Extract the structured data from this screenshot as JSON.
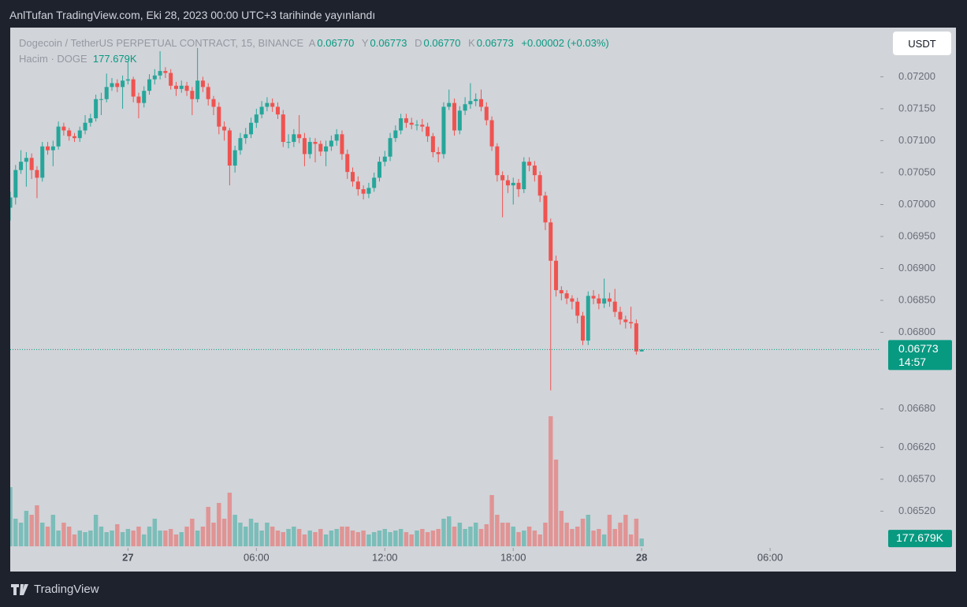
{
  "page": {
    "top_bar": "AnlTufan TradingView.com, Eki 28, 2023 00:00 UTC+3 tarihinde yayınlandı",
    "footer": "TradingView",
    "currency_button": "USDT"
  },
  "chart_data": {
    "type": "candlestick",
    "title": "Dogecoin / TetherUS PERPETUAL CONTRACT, 15, BINANCE",
    "ohlc_legend": [
      {
        "key": "A",
        "label": "0.06770"
      },
      {
        "key": "Y",
        "label": "0.06773"
      },
      {
        "key": "D",
        "label": "0.06770"
      },
      {
        "key": "K",
        "label": "0.06773"
      }
    ],
    "change_label": "+0.00002 (+0.03%)",
    "up_color": "#26a69a",
    "down_color": "#ef5350",
    "grid": false,
    "xlim": [
      0,
      162.6
    ],
    "xticks": [
      {
        "value": 22,
        "label": "27"
      },
      {
        "value": 46,
        "label": "06:00"
      },
      {
        "value": 70,
        "label": "12:00"
      },
      {
        "value": 94,
        "label": "18:00"
      },
      {
        "value": 118,
        "label": "28"
      },
      {
        "value": 142,
        "label": "06:00"
      }
    ],
    "ylim": [
      0.06465,
      0.07277
    ],
    "yticks": [
      {
        "value": 0.072,
        "label": "0.07200"
      },
      {
        "value": 0.0715,
        "label": "0.07150"
      },
      {
        "value": 0.071,
        "label": "0.07100"
      },
      {
        "value": 0.0705,
        "label": "0.07050"
      },
      {
        "value": 0.07,
        "label": "0.07000"
      },
      {
        "value": 0.0695,
        "label": "0.06950"
      },
      {
        "value": 0.069,
        "label": "0.06900"
      },
      {
        "value": 0.0685,
        "label": "0.06850"
      },
      {
        "value": 0.068,
        "label": "0.06800"
      },
      {
        "value": 0.0668,
        "label": "0.06680"
      },
      {
        "value": 0.0662,
        "label": "0.06620"
      },
      {
        "value": 0.0657,
        "label": "0.06570"
      },
      {
        "value": 0.0652,
        "label": "0.06520"
      }
    ],
    "last_price": {
      "label": "0.06773",
      "countdown": "14:57"
    },
    "open": [
      0.06995,
      0.07011,
      0.07054,
      0.07067,
      0.07073,
      0.07054,
      0.07042,
      0.07091,
      0.07085,
      0.07091,
      0.07122,
      0.07116,
      0.07107,
      0.07104,
      0.07116,
      0.07128,
      0.07135,
      0.07165,
      0.07165,
      0.07184,
      0.0719,
      0.07184,
      0.07194,
      0.07196,
      0.07169,
      0.07159,
      0.07178,
      0.07196,
      0.07202,
      0.07209,
      0.07206,
      0.07186,
      0.07181,
      0.07186,
      0.07178,
      0.07165,
      0.07194,
      0.07184,
      0.07165,
      0.07153,
      0.07122,
      0.07116,
      0.07061,
      0.07085,
      0.07104,
      0.0711,
      0.07128,
      0.07141,
      0.07153,
      0.07159,
      0.07153,
      0.07141,
      0.07098,
      0.07098,
      0.0711,
      0.07104,
      0.07079,
      0.07098,
      0.07095,
      0.07083,
      0.07091,
      0.071,
      0.0711,
      0.07079,
      0.07051,
      0.07036,
      0.07024,
      0.07017,
      0.07026,
      0.07042,
      0.07067,
      0.07075,
      0.07104,
      0.07116,
      0.07135,
      0.07128,
      0.07125,
      0.07125,
      0.07122,
      0.07107,
      0.07082,
      0.07079,
      0.07153,
      0.07159,
      0.07116,
      0.07147,
      0.07157,
      0.07162,
      0.07165,
      0.07153,
      0.07132,
      0.07091,
      0.07046,
      0.07038,
      0.0703,
      0.07034,
      0.07024,
      0.07067,
      0.07061,
      0.07046,
      0.07014,
      0.06972,
      0.06912,
      0.06866,
      0.06861,
      0.06853,
      0.06848,
      0.06826,
      0.06787,
      0.06857,
      0.06853,
      0.06845,
      0.06853,
      0.06848,
      0.06832,
      0.0682,
      0.06816,
      0.06814,
      0.0677
    ],
    "high": [
      0.0702,
      0.07062,
      0.07085,
      0.07082,
      0.0708,
      0.0706,
      0.07098,
      0.07098,
      0.071,
      0.0713,
      0.07128,
      0.0712,
      0.07112,
      0.07122,
      0.0714,
      0.07142,
      0.07172,
      0.07175,
      0.07205,
      0.07198,
      0.07196,
      0.07202,
      0.07225,
      0.072,
      0.07175,
      0.07185,
      0.07204,
      0.07212,
      0.0724,
      0.07215,
      0.07212,
      0.07192,
      0.07194,
      0.07192,
      0.07184,
      0.07245,
      0.072,
      0.0719,
      0.0717,
      0.0716,
      0.0713,
      0.0712,
      0.07092,
      0.07112,
      0.0712,
      0.07136,
      0.0715,
      0.07162,
      0.07168,
      0.07166,
      0.0716,
      0.07148,
      0.0711,
      0.07118,
      0.0714,
      0.07112,
      0.07105,
      0.07104,
      0.071,
      0.071,
      0.07108,
      0.07118,
      0.07116,
      0.07086,
      0.07058,
      0.07044,
      0.0703,
      0.07034,
      0.0705,
      0.07075,
      0.07084,
      0.07112,
      0.07124,
      0.07142,
      0.07142,
      0.07136,
      0.07132,
      0.07134,
      0.07128,
      0.07112,
      0.0709,
      0.0716,
      0.0718,
      0.07166,
      0.07154,
      0.07168,
      0.0719,
      0.07174,
      0.0718,
      0.0716,
      0.07138,
      0.07096,
      0.07052,
      0.07046,
      0.07042,
      0.0704,
      0.07074,
      0.07074,
      0.07068,
      0.07052,
      0.0702,
      0.06978,
      0.0692,
      0.06872,
      0.06866,
      0.06858,
      0.06854,
      0.06832,
      0.06864,
      0.06866,
      0.0686,
      0.06884,
      0.06862,
      0.06868,
      0.0684,
      0.06826,
      0.0684,
      0.0682,
      0.06773
    ],
    "low": [
      0.06975,
      0.07,
      0.07048,
      0.07028,
      0.0704,
      0.0701,
      0.07036,
      0.07078,
      0.0706,
      0.07086,
      0.07108,
      0.071,
      0.07098,
      0.07098,
      0.0711,
      0.07122,
      0.0713,
      0.0714,
      0.0716,
      0.07178,
      0.07176,
      0.0715,
      0.07188,
      0.0716,
      0.07135,
      0.07152,
      0.07172,
      0.07188,
      0.07196,
      0.07198,
      0.0718,
      0.0717,
      0.07175,
      0.0717,
      0.0714,
      0.0716,
      0.07176,
      0.07155,
      0.0714,
      0.0711,
      0.071,
      0.0703,
      0.0705,
      0.07078,
      0.07095,
      0.07104,
      0.0712,
      0.07135,
      0.07146,
      0.07145,
      0.07134,
      0.0709,
      0.07088,
      0.0709,
      0.07096,
      0.0706,
      0.07072,
      0.07066,
      0.07076,
      0.0706,
      0.07084,
      0.07092,
      0.0707,
      0.0704,
      0.07028,
      0.07014,
      0.07008,
      0.0701,
      0.0702,
      0.07036,
      0.0706,
      0.07068,
      0.07098,
      0.0711,
      0.0712,
      0.07118,
      0.07116,
      0.07114,
      0.07098,
      0.07074,
      0.07066,
      0.07072,
      0.07148,
      0.07108,
      0.0711,
      0.0714,
      0.0715,
      0.07154,
      0.07146,
      0.07124,
      0.07084,
      0.07036,
      0.0698,
      0.07018,
      0.07,
      0.07012,
      0.07018,
      0.07052,
      0.07036,
      0.07004,
      0.0696,
      0.06709,
      0.06856,
      0.0685,
      0.06844,
      0.06836,
      0.06814,
      0.0678,
      0.0678,
      0.06844,
      0.06836,
      0.06838,
      0.0684,
      0.06824,
      0.06812,
      0.06806,
      0.06806,
      0.06765,
      0.0677
    ],
    "close": [
      0.07011,
      0.07054,
      0.07067,
      0.07073,
      0.07054,
      0.07042,
      0.07091,
      0.07085,
      0.07091,
      0.07122,
      0.07116,
      0.07107,
      0.07104,
      0.07116,
      0.07128,
      0.07135,
      0.07165,
      0.07165,
      0.07184,
      0.0719,
      0.07184,
      0.07194,
      0.07196,
      0.07169,
      0.07159,
      0.07178,
      0.07196,
      0.07202,
      0.07209,
      0.07206,
      0.07186,
      0.07181,
      0.07186,
      0.07178,
      0.07165,
      0.07194,
      0.07184,
      0.07165,
      0.07153,
      0.07122,
      0.07116,
      0.07061,
      0.07085,
      0.07104,
      0.0711,
      0.07128,
      0.07141,
      0.07153,
      0.07159,
      0.07153,
      0.07141,
      0.07098,
      0.07098,
      0.0711,
      0.07104,
      0.07079,
      0.07098,
      0.07095,
      0.07083,
      0.07091,
      0.071,
      0.0711,
      0.07079,
      0.07051,
      0.07036,
      0.07024,
      0.07017,
      0.07026,
      0.07042,
      0.07067,
      0.07075,
      0.07104,
      0.07116,
      0.07135,
      0.07128,
      0.07125,
      0.07125,
      0.07122,
      0.07107,
      0.07082,
      0.07079,
      0.07153,
      0.07159,
      0.07116,
      0.07147,
      0.07157,
      0.07162,
      0.07165,
      0.07153,
      0.07132,
      0.07091,
      0.07046,
      0.07038,
      0.0703,
      0.07034,
      0.07024,
      0.07067,
      0.07061,
      0.07046,
      0.07014,
      0.06972,
      0.06912,
      0.06866,
      0.06861,
      0.06853,
      0.06848,
      0.06826,
      0.06787,
      0.06857,
      0.06853,
      0.06845,
      0.06853,
      0.06848,
      0.06832,
      0.0682,
      0.06816,
      0.06814,
      0.0677,
      0.06773
    ],
    "volume": {
      "name": "Hacim · DOGE",
      "value_label": "177.679K",
      "vlim": [
        0,
        3600000
      ],
      "values": [
        1350000,
        630000,
        540000,
        810000,
        720000,
        936000,
        540000,
        450000,
        720000,
        360000,
        540000,
        450000,
        270000,
        360000,
        324000,
        360000,
        720000,
        450000,
        324000,
        360000,
        504000,
        324000,
        396000,
        360000,
        450000,
        270000,
        450000,
        630000,
        360000,
        360000,
        396000,
        270000,
        324000,
        450000,
        630000,
        360000,
        450000,
        900000,
        540000,
        990000,
        630000,
        1224000,
        720000,
        540000,
        450000,
        630000,
        540000,
        360000,
        540000,
        450000,
        360000,
        324000,
        396000,
        450000,
        396000,
        270000,
        360000,
        324000,
        396000,
        270000,
        360000,
        396000,
        450000,
        450000,
        360000,
        324000,
        360000,
        270000,
        324000,
        360000,
        396000,
        324000,
        360000,
        396000,
        324000,
        270000,
        360000,
        396000,
        324000,
        360000,
        396000,
        630000,
        684000,
        450000,
        540000,
        396000,
        450000,
        540000,
        396000,
        504000,
        1170000,
        720000,
        540000,
        540000,
        450000,
        324000,
        360000,
        450000,
        360000,
        270000,
        540000,
        2970000,
        1980000,
        810000,
        540000,
        396000,
        450000,
        630000,
        720000,
        360000,
        396000,
        270000,
        720000,
        396000,
        540000,
        720000,
        270000,
        630000,
        177679
      ]
    }
  }
}
